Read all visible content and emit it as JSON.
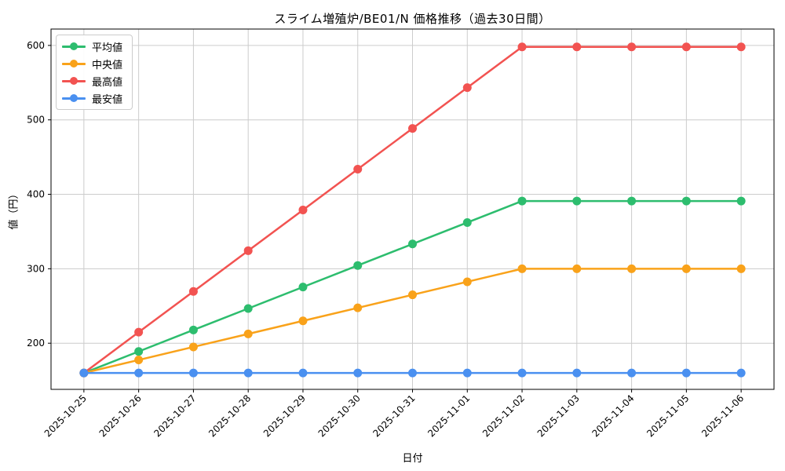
{
  "chart_data": {
    "type": "line",
    "title": "スライム増殖炉/BE01/N 価格推移（過去30日間）",
    "xlabel": "日付",
    "ylabel": "値（円）",
    "x": [
      "2025-10-25",
      "2025-10-26",
      "2025-10-27",
      "2025-10-28",
      "2025-10-29",
      "2025-10-30",
      "2025-10-31",
      "2025-11-01",
      "2025-11-02",
      "2025-11-03",
      "2025-11-04",
      "2025-11-05",
      "2025-11-06"
    ],
    "series": [
      {
        "name": "平均値",
        "color": "#2dbd6e",
        "values": [
          160,
          188.9,
          217.8,
          246.6,
          275.5,
          304.4,
          333.3,
          362.1,
          391,
          391,
          391,
          391,
          391
        ]
      },
      {
        "name": "中央値",
        "color": "#f9a21a",
        "values": [
          160,
          177.5,
          195,
          212.5,
          230,
          247.5,
          265,
          282.5,
          300,
          300,
          300,
          300,
          300
        ]
      },
      {
        "name": "最高値",
        "color": "#f25351",
        "values": [
          160,
          214.8,
          269.5,
          324.3,
          379,
          433.8,
          488.5,
          543.3,
          598,
          598,
          598,
          598,
          598
        ]
      },
      {
        "name": "最安値",
        "color": "#4a90f0",
        "values": [
          160,
          160,
          160,
          160,
          160,
          160,
          160,
          160,
          160,
          160,
          160,
          160,
          160
        ]
      }
    ],
    "ylim": [
      138,
      622
    ],
    "yticks": [
      200,
      300,
      400,
      500,
      600
    ],
    "grid": true,
    "legend_position": "upper-left",
    "colors": {
      "grid": "#cccccc",
      "axis": "#000000",
      "background": "#ffffff"
    }
  }
}
